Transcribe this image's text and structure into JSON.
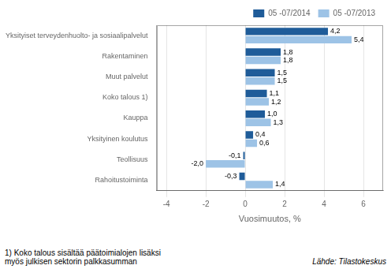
{
  "chart_data": {
    "type": "bar",
    "orientation": "horizontal",
    "categories": [
      "Yksityiset terveydenhuolto- ja sosiaalipalvelut",
      "Rakentaminen",
      "Muut palvelut",
      "Koko talous 1)",
      "Kauppa",
      "Yksityinen koulutus",
      "Teollisuus",
      "Rahoitustoiminta"
    ],
    "series": [
      {
        "name": "05 -07/2014",
        "color": "#1F5C99",
        "values": [
          4.2,
          1.8,
          1.5,
          1.1,
          1.0,
          0.4,
          -0.1,
          -0.3
        ],
        "value_labels": [
          "4,2",
          "1,8",
          "1,5",
          "1,1",
          "1,0",
          "0,4",
          "-0,1",
          "-0,3"
        ]
      },
      {
        "name": "05 -07/2013",
        "color": "#9DC3E6",
        "values": [
          5.4,
          1.8,
          1.5,
          1.2,
          1.3,
          0.6,
          -2.0,
          1.4
        ],
        "value_labels": [
          "5,4",
          "1,8",
          "1,5",
          "1,2",
          "1,3",
          "0,6",
          "-2,0",
          "1,4"
        ]
      }
    ],
    "xlabel": "Vuosimuutos, %",
    "xlim": [
      -4.5,
      7.0
    ],
    "xticks": [
      -4,
      -2,
      0,
      2,
      4,
      6
    ],
    "grid": "x",
    "legend": "upper right",
    "data_labels": true,
    "annotations": [
      "1) Koko talous sisältää päätoimialojen lisäksi\nmyös julkisen sektorin palkkasumman",
      "Lähde: Tilastokeskus"
    ]
  }
}
